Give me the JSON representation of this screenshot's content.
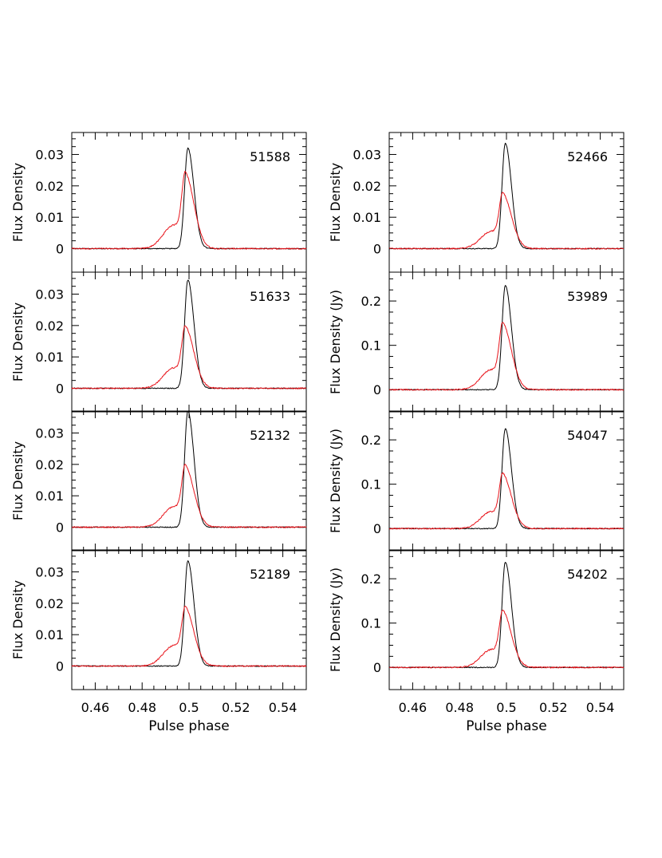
{
  "chart_data": {
    "type": "line",
    "xlabel": "Pulse phase",
    "xlim": [
      0.45,
      0.55
    ],
    "xticks": [
      0.46,
      0.48,
      0.5,
      0.52,
      0.54
    ],
    "xtick_labels": [
      "0.46",
      "0.48",
      "0.5",
      "0.52",
      "0.54"
    ],
    "series_colors": {
      "black": "#000000",
      "red": "#e8141b"
    },
    "columns": [
      {
        "panels": [
          {
            "label": "51588",
            "ylabel": "Flux Density",
            "ylim": [
              -0.0075,
              0.037
            ],
            "yticks": [
              0,
              0.01,
              0.02,
              0.03
            ],
            "ytick_labels": [
              "0",
              "0.01",
              "0.02",
              "0.03"
            ],
            "black_peak": 0.032,
            "red_peak": 0.0205,
            "red_shoulder": 0.0075
          },
          {
            "label": "51633",
            "ylabel": "Flux Density",
            "ylim": [
              -0.0075,
              0.037
            ],
            "yticks": [
              0,
              0.01,
              0.02,
              0.03
            ],
            "ytick_labels": [
              "0",
              "0.01",
              "0.02",
              "0.03"
            ],
            "black_peak": 0.0345,
            "red_peak": 0.0165,
            "red_shoulder": 0.0065
          },
          {
            "label": "52132",
            "ylabel": "Flux Density",
            "ylim": [
              -0.0075,
              0.037
            ],
            "yticks": [
              0,
              0.01,
              0.02,
              0.03
            ],
            "ytick_labels": [
              "0",
              "0.01",
              "0.02",
              "0.03"
            ],
            "black_peak": 0.037,
            "red_peak": 0.0165,
            "red_shoulder": 0.0065
          },
          {
            "label": "52189",
            "ylabel": "Flux Density",
            "ylim": [
              -0.0075,
              0.037
            ],
            "yticks": [
              0,
              0.01,
              0.02,
              0.03
            ],
            "ytick_labels": [
              "0",
              "0.01",
              "0.02",
              "0.03"
            ],
            "black_peak": 0.0335,
            "red_peak": 0.0155,
            "red_shoulder": 0.0065
          }
        ]
      },
      {
        "panels": [
          {
            "label": "52466",
            "ylabel": "Flux Density",
            "ylim": [
              -0.0075,
              0.037
            ],
            "yticks": [
              0,
              0.01,
              0.02,
              0.03
            ],
            "ytick_labels": [
              "0",
              "0.01",
              "0.02",
              "0.03"
            ],
            "black_peak": 0.0335,
            "red_peak": 0.015,
            "red_shoulder": 0.0055
          },
          {
            "label": "53989",
            "ylabel": "Flux Density (Jy)",
            "ylim": [
              -0.05,
              0.265
            ],
            "yticks": [
              0,
              0.1,
              0.2
            ],
            "ytick_labels": [
              "0",
              "0.1",
              "0.2"
            ],
            "black_peak": 0.235,
            "red_peak": 0.128,
            "red_shoulder": 0.045
          },
          {
            "label": "54047",
            "ylabel": "Flux Density (Jy)",
            "ylim": [
              -0.05,
              0.265
            ],
            "yticks": [
              0,
              0.1,
              0.2
            ],
            "ytick_labels": [
              "0",
              "0.1",
              "0.2"
            ],
            "black_peak": 0.225,
            "red_peak": 0.105,
            "red_shoulder": 0.038
          },
          {
            "label": "54202",
            "ylabel": "Flux Density (Jy)",
            "ylim": [
              -0.05,
              0.265
            ],
            "yticks": [
              0,
              0.1,
              0.2
            ],
            "ytick_labels": [
              "0",
              "0.1",
              "0.2"
            ],
            "black_peak": 0.238,
            "red_peak": 0.108,
            "red_shoulder": 0.04
          }
        ]
      }
    ]
  }
}
